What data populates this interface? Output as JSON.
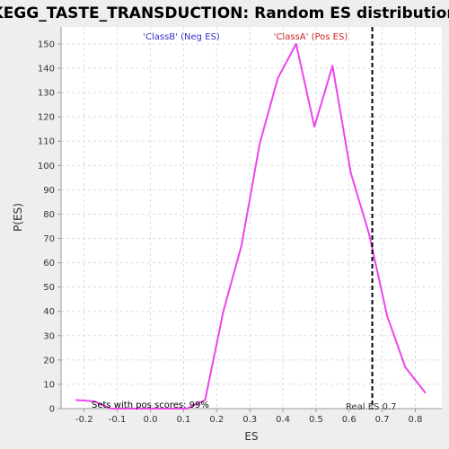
{
  "chart_data": {
    "type": "line",
    "title": "KEGG_TASTE_TRANSDUCTION: Random ES distribution",
    "xlabel": "ES",
    "ylabel": "P(ES)",
    "xlim": [
      -0.27,
      0.88
    ],
    "ylim": [
      0,
      157
    ],
    "x_ticks": [
      -0.2,
      -0.1,
      0.0,
      0.1,
      0.2,
      0.3,
      0.4,
      0.5,
      0.6,
      0.7,
      0.8
    ],
    "x_tick_labels": [
      "-0.2",
      "-0.1",
      "0.0",
      "0.1",
      "0.2",
      "0.3",
      "0.4",
      "0.5",
      "0.6",
      "0.7",
      "0.8"
    ],
    "y_ticks": [
      0,
      10,
      20,
      30,
      40,
      50,
      60,
      70,
      80,
      90,
      100,
      110,
      120,
      130,
      140,
      150
    ],
    "y_tick_labels": [
      "0",
      "10",
      "20",
      "30",
      "40",
      "50",
      "60",
      "70",
      "80",
      "90",
      "100",
      "110",
      "120",
      "130",
      "140",
      "150"
    ],
    "grid": true,
    "series": [
      {
        "color": "#ee44ee",
        "x": [
          -0.225,
          -0.17,
          -0.12,
          -0.06,
          0.0,
          0.055,
          0.11,
          0.165,
          0.22,
          0.275,
          0.33,
          0.385,
          0.44,
          0.495,
          0.55,
          0.605,
          0.66,
          0.715,
          0.77,
          0.83
        ],
        "y": [
          3.5,
          3,
          0,
          0,
          0,
          0,
          0,
          3.5,
          40,
          67,
          109,
          136,
          150,
          116,
          141,
          97,
          72,
          38,
          17,
          6.5
        ]
      }
    ],
    "vline": {
      "x": 0.67,
      "style": "dashed",
      "color": "#000000",
      "label": "Real ES 0.7"
    },
    "annotations": {
      "neg": {
        "text": "'ClassB' (Neg ES)",
        "color": "#3333cc"
      },
      "pos": {
        "text": "'ClassA' (Pos ES)",
        "color": "#cc2222"
      },
      "pos_scores": {
        "text": "Sets with pos scores: 99%",
        "color": "#000000"
      }
    },
    "colors": {
      "plot_bg": "#ffffff",
      "page_bg": "#eeeeee",
      "grid": "#dddddd",
      "axis": "#999999"
    }
  }
}
